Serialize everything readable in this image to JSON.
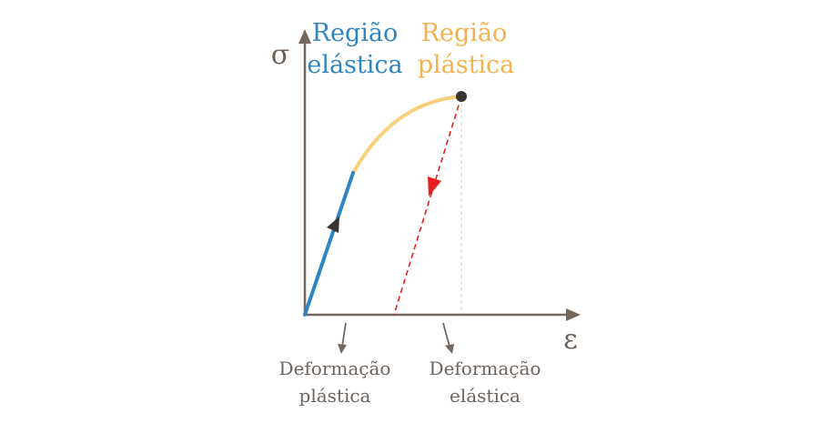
{
  "axes": {
    "y_symbol": "σ",
    "x_symbol": "ε"
  },
  "regions": {
    "elastic": {
      "line1": "Região",
      "line2": "elástica",
      "color": "#2e86c1"
    },
    "plastic": {
      "line1": "Região",
      "line2": "plástica",
      "color": "#f3b24f"
    }
  },
  "annotations": {
    "plastic_deformation": {
      "line1": "Deformação",
      "line2": "plástica"
    },
    "elastic_deformation": {
      "line1": "Deformação",
      "line2": "elástica"
    }
  },
  "colors": {
    "axis": "#74675e",
    "elastic_curve": "#2e86c1",
    "plastic_curve": "#f8d07c",
    "unloading_line": "#e52020",
    "point": "#3b3330",
    "reference_line": "#c8c8c8"
  }
}
